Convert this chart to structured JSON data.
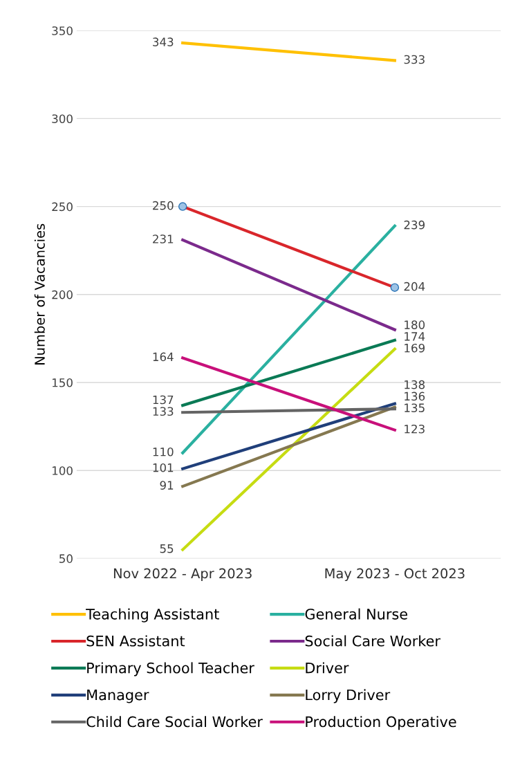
{
  "chart_data": {
    "type": "line",
    "ylabel": "Number of Vacancies",
    "categories": [
      "Nov 2022 - Apr 2023",
      "May 2023 - Oct 2023"
    ],
    "ylim": [
      50,
      350
    ],
    "yticks": [
      50,
      100,
      150,
      200,
      250,
      300,
      350
    ],
    "grid": "y",
    "legend": "bottom",
    "data_labels": true,
    "series": [
      {
        "name": "Teaching Assistant",
        "color": "#ffc000",
        "values": [
          343,
          333
        ]
      },
      {
        "name": "General Nurse",
        "color": "#2ab0a0",
        "values": [
          110,
          239
        ]
      },
      {
        "name": "SEN Assistant",
        "color": "#d9262b",
        "values": [
          250,
          204
        ],
        "marker": "circle"
      },
      {
        "name": "Social Care Worker",
        "color": "#7b2a8c",
        "values": [
          231,
          180
        ]
      },
      {
        "name": "Primary School Teacher",
        "color": "#0a7a55",
        "values": [
          137,
          174
        ]
      },
      {
        "name": "Driver",
        "color": "#c6dc12",
        "values": [
          55,
          169
        ]
      },
      {
        "name": "Manager",
        "color": "#203f7a",
        "values": [
          101,
          138
        ]
      },
      {
        "name": "Lorry Driver",
        "color": "#857850",
        "values": [
          91,
          136
        ]
      },
      {
        "name": "Child Care Social Worker",
        "color": "#646464",
        "values": [
          133,
          135
        ]
      },
      {
        "name": "Production Operative",
        "color": "#c8107a",
        "values": [
          164,
          123
        ]
      }
    ]
  }
}
